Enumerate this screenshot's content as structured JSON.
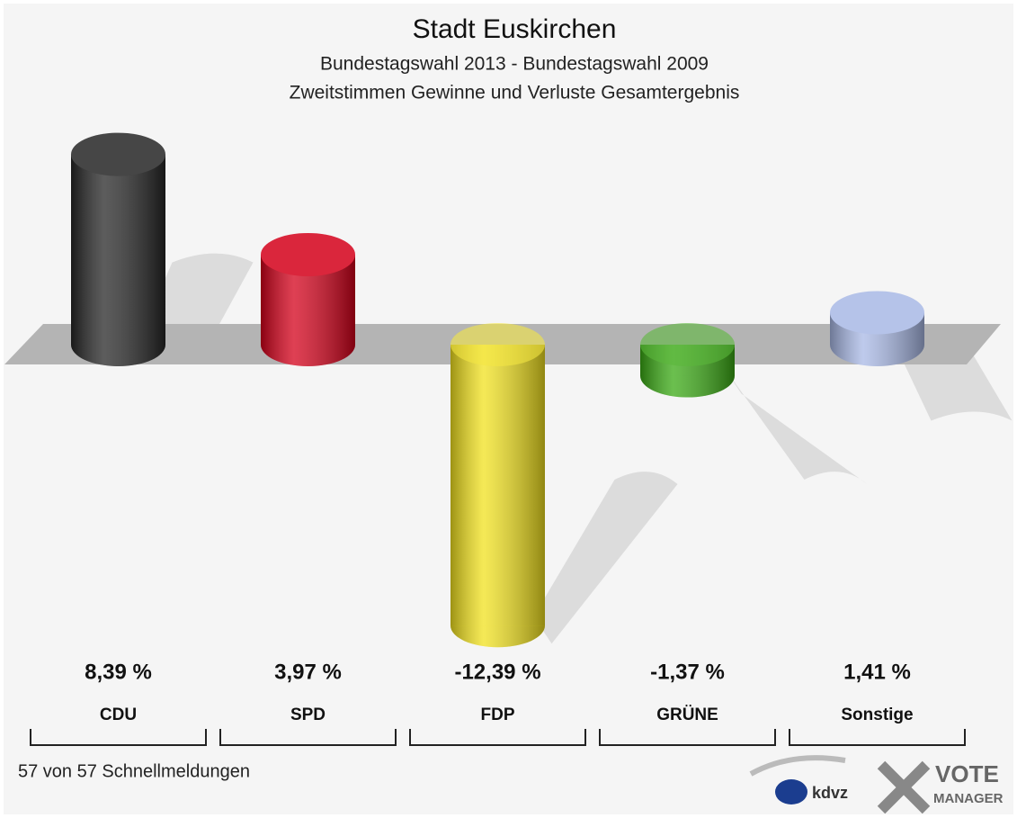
{
  "chart_data": {
    "type": "bar3d",
    "title": "Stadt Euskirchen",
    "subtitle": [
      "Bundestagswahl 2013 - Bundestagswahl 2009",
      "Zweitstimmen Gewinne und Verluste Gesamtergebnis"
    ],
    "categories": [
      "CDU",
      "SPD",
      "FDP",
      "GRÜNE",
      "Sonstige"
    ],
    "values": [
      8.39,
      3.97,
      -12.39,
      -1.37,
      1.41
    ],
    "value_labels": [
      "8,39 %",
      "3,97 %",
      "-12,39 %",
      "-1,37 %",
      "1,41 %"
    ],
    "colors": [
      "#262626",
      "#d4001a",
      "#f2e21e",
      "#3aaa14",
      "#a9b9e6"
    ],
    "footnote": "57 von 57 Schnellmeldungen"
  },
  "logos": {
    "left": "kdvz",
    "right": [
      "VOTE",
      "MANAGER"
    ]
  }
}
